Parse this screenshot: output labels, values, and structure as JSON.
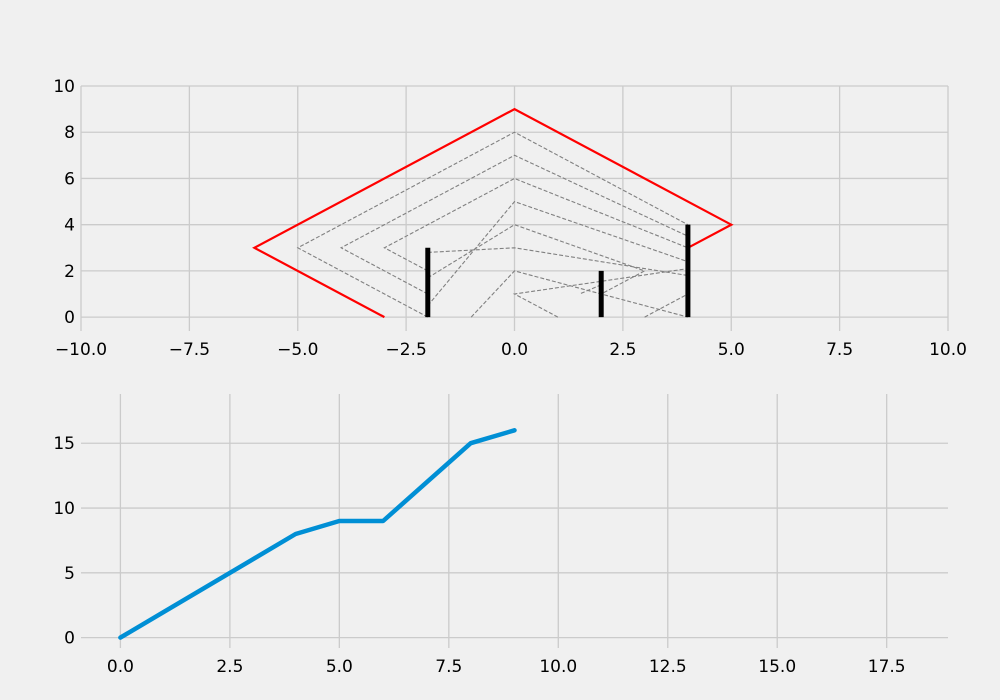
{
  "chart_data": [
    {
      "type": "line",
      "title": "",
      "xlabel": "",
      "ylabel": "",
      "xlim": [
        -10,
        10
      ],
      "ylim": [
        -0.6,
        10
      ],
      "xticks": [
        -10,
        -7.5,
        -5,
        -2.5,
        0,
        2.5,
        5,
        7.5,
        10
      ],
      "xtick_labels": [
        "−10.0",
        "−7.5",
        "−5.0",
        "−2.5",
        "0.0",
        "2.5",
        "5.0",
        "7.5",
        "10.0"
      ],
      "yticks": [
        0,
        2,
        4,
        6,
        8,
        10
      ],
      "ytick_labels": [
        "0",
        "2",
        "4",
        "6",
        "8",
        "10"
      ],
      "grid": true,
      "outline": {
        "color": "#ff0000",
        "x": [
          -3,
          -6,
          0,
          5,
          4
        ],
        "y": [
          0,
          3,
          9,
          4,
          3
        ]
      },
      "dashed_lines": {
        "color": "#808080",
        "lines": [
          {
            "x": [
              -2,
              -5,
              0,
              4
            ],
            "y": [
              0,
              3,
              8,
              4
            ]
          },
          {
            "x": [
              -2,
              -4,
              0,
              4
            ],
            "y": [
              1,
              3,
              7,
              3.5
            ]
          },
          {
            "x": [
              -2,
              -3,
              0,
              4
            ],
            "y": [
              2,
              3,
              6,
              3
            ]
          },
          {
            "x": [
              -2,
              0,
              4
            ],
            "y": [
              0.5,
              5,
              2.4
            ]
          },
          {
            "x": [
              -2,
              0,
              3,
              2
            ],
            "y": [
              1.7,
              4,
              2,
              1
            ]
          },
          {
            "x": [
              -2,
              0,
              4
            ],
            "y": [
              2.8,
              3,
              1.8
            ]
          },
          {
            "x": [
              -1,
              0,
              4
            ],
            "y": [
              0,
              2,
              0
            ]
          },
          {
            "x": [
              1,
              0,
              4
            ],
            "y": [
              0,
              1,
              2.1
            ]
          },
          {
            "x": [
              2,
              1.5
            ],
            "y": [
              1.4,
              1
            ]
          },
          {
            "x": [
              3,
              4
            ],
            "y": [
              0,
              1
            ]
          }
        ]
      },
      "vertical_bars": {
        "color": "#000000",
        "x": [
          -2,
          2,
          4
        ],
        "y_top": [
          3,
          2,
          4
        ]
      }
    },
    {
      "type": "line",
      "title": "",
      "xlabel": "",
      "ylabel": "",
      "xlim": [
        -0.9,
        18.9
      ],
      "ylim": [
        -0.8,
        18.8
      ],
      "xticks": [
        0,
        2.5,
        5,
        7.5,
        10,
        12.5,
        15,
        17.5
      ],
      "xtick_labels": [
        "0.0",
        "2.5",
        "5.0",
        "7.5",
        "10.0",
        "12.5",
        "15.0",
        "17.5"
      ],
      "yticks": [
        0,
        5,
        10,
        15
      ],
      "ytick_labels": [
        "0",
        "5",
        "10",
        "15"
      ],
      "grid": true,
      "series": [
        {
          "color": "#008fd5",
          "x": [
            0,
            1,
            2,
            3,
            4,
            5,
            6,
            7,
            8,
            9
          ],
          "values": [
            0,
            2,
            4,
            6,
            8,
            9,
            9,
            12,
            15,
            16
          ]
        }
      ]
    }
  ]
}
